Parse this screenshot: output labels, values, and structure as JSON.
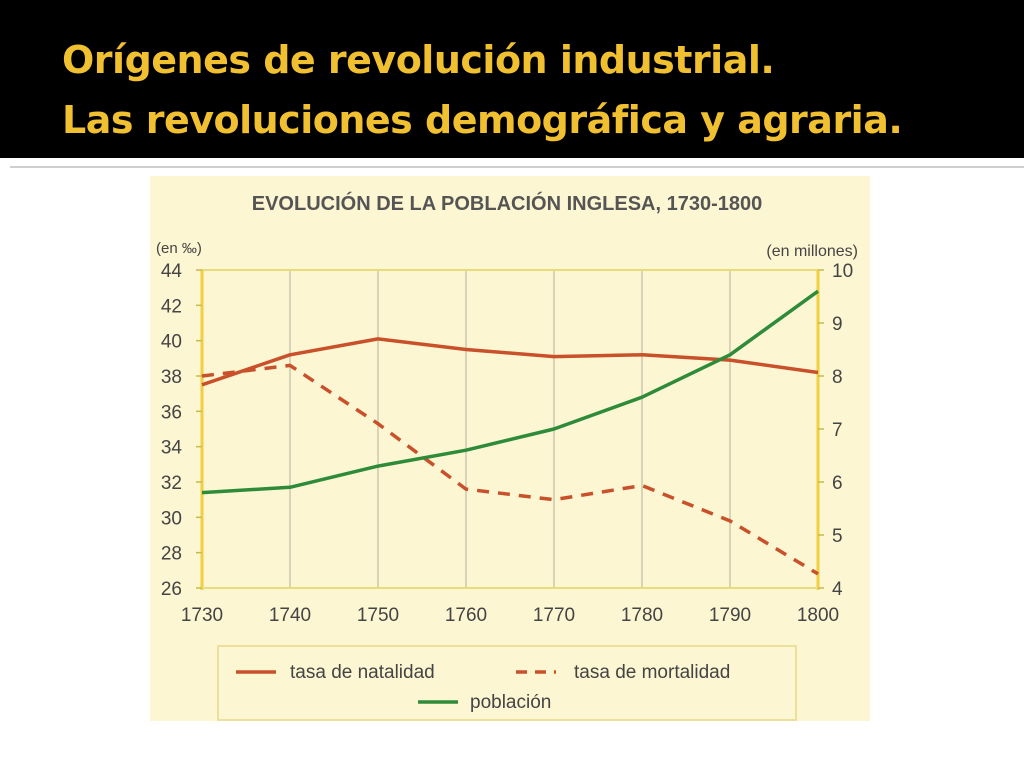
{
  "slide": {
    "title_line1": "Orígenes de revolución industrial.",
    "title_line2": "Las revoluciones demográfica y agraria."
  },
  "colors": {
    "title": "#f0c030",
    "natalidad": "#c8502a",
    "mortalidad": "#c8502a",
    "poblacion": "#2e8b3a",
    "chart_bg": "#fdf6d2",
    "chart_text": "#444444"
  },
  "chart_data": {
    "type": "line",
    "title": "EVOLUCIÓN DE LA POBLACIÓN INGLESA, 1730-1800",
    "ylabel_left": "(en ‰)",
    "ylabel_right": "(en millones)",
    "x": [
      1730,
      1740,
      1750,
      1760,
      1770,
      1780,
      1790,
      1800
    ],
    "ylim_left": [
      26,
      44
    ],
    "yticks_left": [
      26,
      28,
      30,
      32,
      34,
      36,
      38,
      40,
      42,
      44
    ],
    "ylim_right": [
      4,
      10
    ],
    "yticks_right": [
      4,
      5,
      6,
      7,
      8,
      9,
      10
    ],
    "grid": "vertical",
    "legend_position": "bottom",
    "series": [
      {
        "name": "tasa de natalidad",
        "axis": "left",
        "style": "solid",
        "values": [
          37.5,
          39.2,
          40.1,
          39.5,
          39.1,
          39.2,
          38.9,
          38.2
        ]
      },
      {
        "name": "tasa de mortalidad",
        "axis": "left",
        "style": "dashed",
        "values": [
          38.0,
          38.6,
          35.3,
          31.6,
          31.0,
          31.8,
          29.8,
          26.8
        ]
      },
      {
        "name": "población",
        "axis": "right",
        "style": "solid",
        "values": [
          5.8,
          5.9,
          6.3,
          6.6,
          7.0,
          7.6,
          8.4,
          9.6
        ]
      }
    ]
  }
}
